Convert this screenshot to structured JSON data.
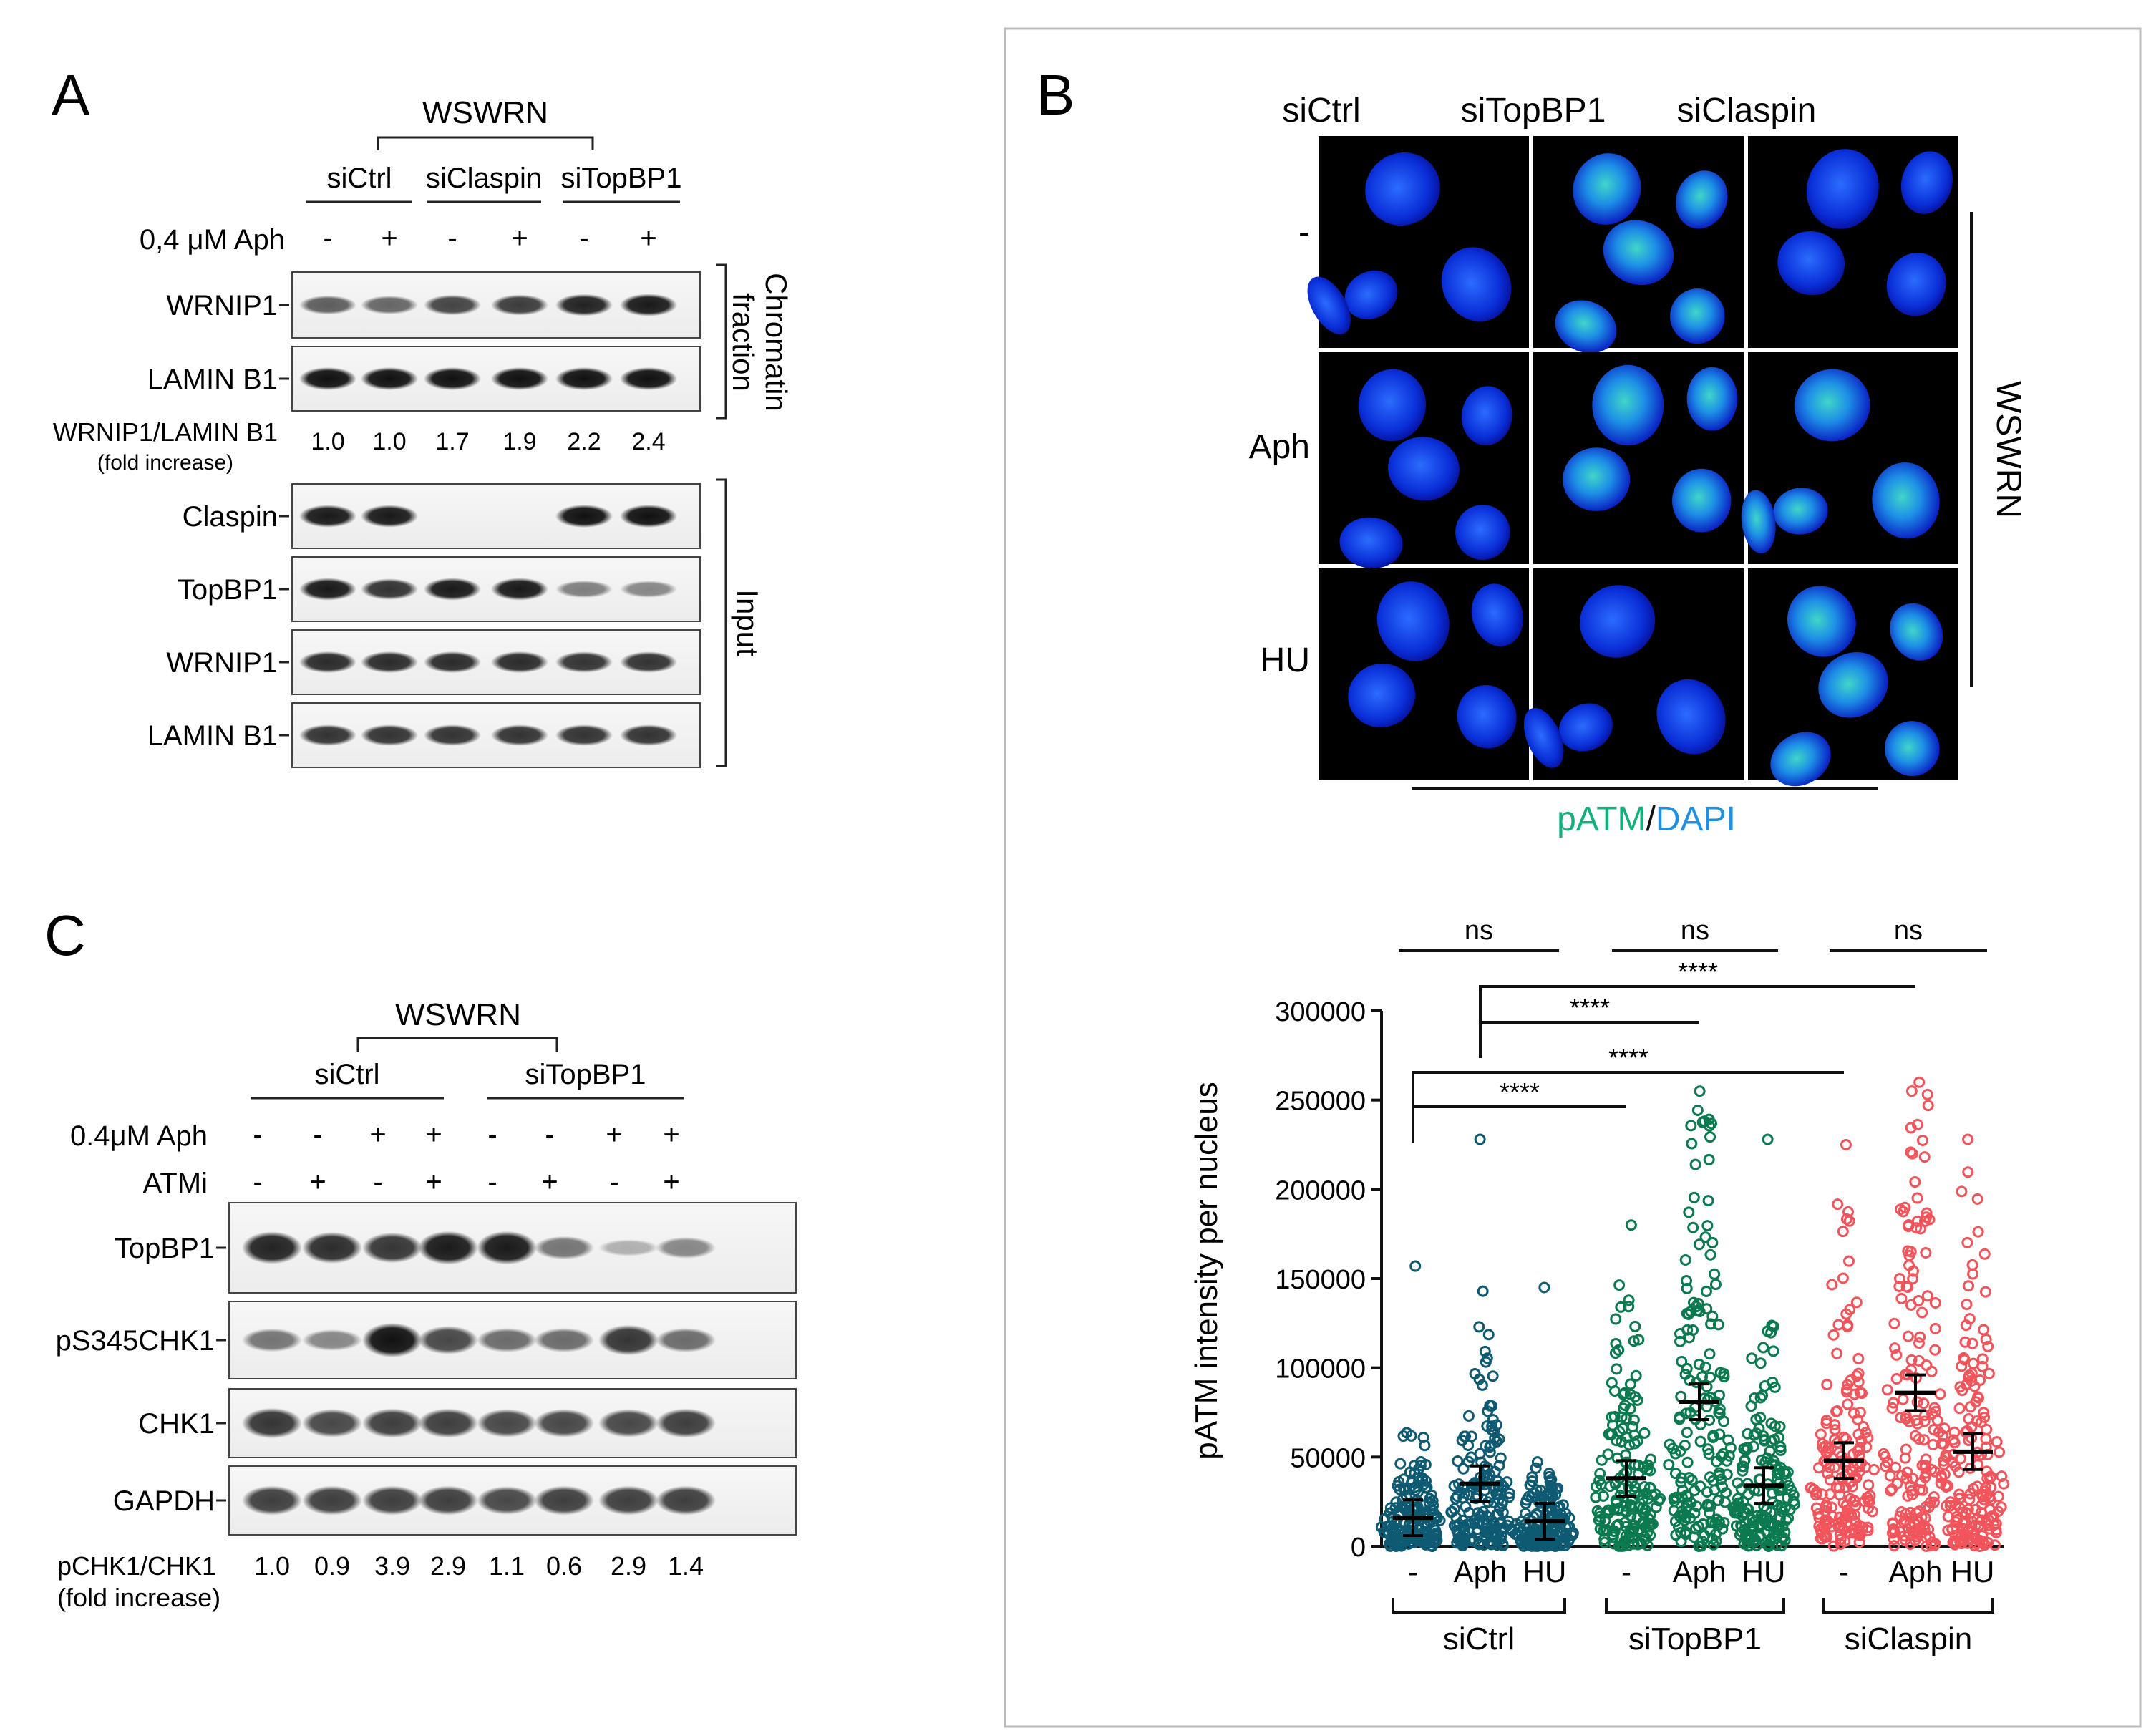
{
  "panel_a": {
    "letter": "A",
    "cell_line": "WSWRN",
    "groups": [
      "siCtrl",
      "siClaspin",
      "siTopBP1"
    ],
    "treatment_label": "0,4 μM Aph",
    "treatment_signs": [
      "-",
      "+",
      "-",
      "+",
      "-",
      "+"
    ],
    "chromatin_blots": [
      "WRNIP1",
      "LAMIN B1"
    ],
    "chromatin_label_1": "Chromatin",
    "chromatin_label_2": "fraction",
    "ratio_label": "WRNIP1/LAMIN B1",
    "ratio_sublabel": "(fold increase)",
    "ratio_values": [
      "1.0",
      "1.0",
      "1.7",
      "1.9",
      "2.2",
      "2.4"
    ],
    "input_blots": [
      "Claspin",
      "TopBP1",
      "WRNIP1",
      "LAMIN B1"
    ],
    "input_label": "Input"
  },
  "panel_b": {
    "letter": "B",
    "columns": [
      "siCtrl",
      "siTopBP1",
      "siClaspin"
    ],
    "rows": [
      "-",
      "Aph",
      "HU"
    ],
    "cell_line": "WSWRN",
    "stain_green": "pATM",
    "stain_sep": "/",
    "stain_blue": "DAPI"
  },
  "panel_c": {
    "letter": "C",
    "cell_line": "WSWRN",
    "groups": [
      "siCtrl",
      "siTopBP1"
    ],
    "aph_label": "0.4μM Aph",
    "aph_signs": [
      "-",
      "-",
      "+",
      "+",
      "-",
      "-",
      "+",
      "+"
    ],
    "atmi_label": "ATMi",
    "atmi_signs": [
      "-",
      "+",
      "-",
      "+",
      "-",
      "+",
      "-",
      "+"
    ],
    "blots": [
      "TopBP1",
      "pS345CHK1",
      "CHK1",
      "GAPDH"
    ],
    "ratio_label": "pCHK1/CHK1",
    "ratio_sublabel": "(fold increase)",
    "ratio_values": [
      "1.0",
      "0.9",
      "3.9",
      "2.9",
      "1.1",
      "0.6",
      "2.9",
      "1.4"
    ]
  },
  "chart_data": {
    "type": "scatter",
    "title": "",
    "xlabel": "",
    "ylabel": "pATM intensity per nucleus",
    "ylim": [
      0,
      300000
    ],
    "yticks": [
      "0",
      "50000",
      "100000",
      "150000",
      "200000",
      "250000",
      "300000"
    ],
    "categories": [
      "-",
      "Aph",
      "HU",
      "-",
      "Aph",
      "HU",
      "-",
      "Aph",
      "HU"
    ],
    "groups": [
      {
        "name": "siCtrl",
        "color": "#0e5a72"
      },
      {
        "name": "siTopBP1",
        "color": "#0b7a4e"
      },
      {
        "name": "siClaspin",
        "color": "#f2545b"
      }
    ],
    "series": [
      {
        "group": "siCtrl",
        "category": "-",
        "mean": 16000,
        "max": 157000
      },
      {
        "group": "siCtrl",
        "category": "Aph",
        "mean": 35000,
        "max": 228000
      },
      {
        "group": "siCtrl",
        "category": "HU",
        "mean": 14000,
        "max": 145000
      },
      {
        "group": "siTopBP1",
        "category": "-",
        "mean": 38000,
        "max": 180000
      },
      {
        "group": "siTopBP1",
        "category": "Aph",
        "mean": 81000,
        "max": 255000
      },
      {
        "group": "siTopBP1",
        "category": "HU",
        "mean": 34000,
        "max": 228000
      },
      {
        "group": "siClaspin",
        "category": "-",
        "mean": 48000,
        "max": 225000
      },
      {
        "group": "siClaspin",
        "category": "Aph",
        "mean": 86000,
        "max": 260000
      },
      {
        "group": "siClaspin",
        "category": "HU",
        "mean": 53000,
        "max": 228000
      }
    ],
    "annotations": [
      {
        "label": "ns",
        "from": 0,
        "to": 2
      },
      {
        "label": "ns",
        "from": 3,
        "to": 5
      },
      {
        "label": "ns",
        "from": 6,
        "to": 8
      },
      {
        "label": "****",
        "from": 1,
        "to": 7
      },
      {
        "label": "****",
        "from": 1,
        "to": 4
      },
      {
        "label": "****",
        "from": 0,
        "to": 6
      },
      {
        "label": "****",
        "from": 0,
        "to": 3
      }
    ]
  }
}
